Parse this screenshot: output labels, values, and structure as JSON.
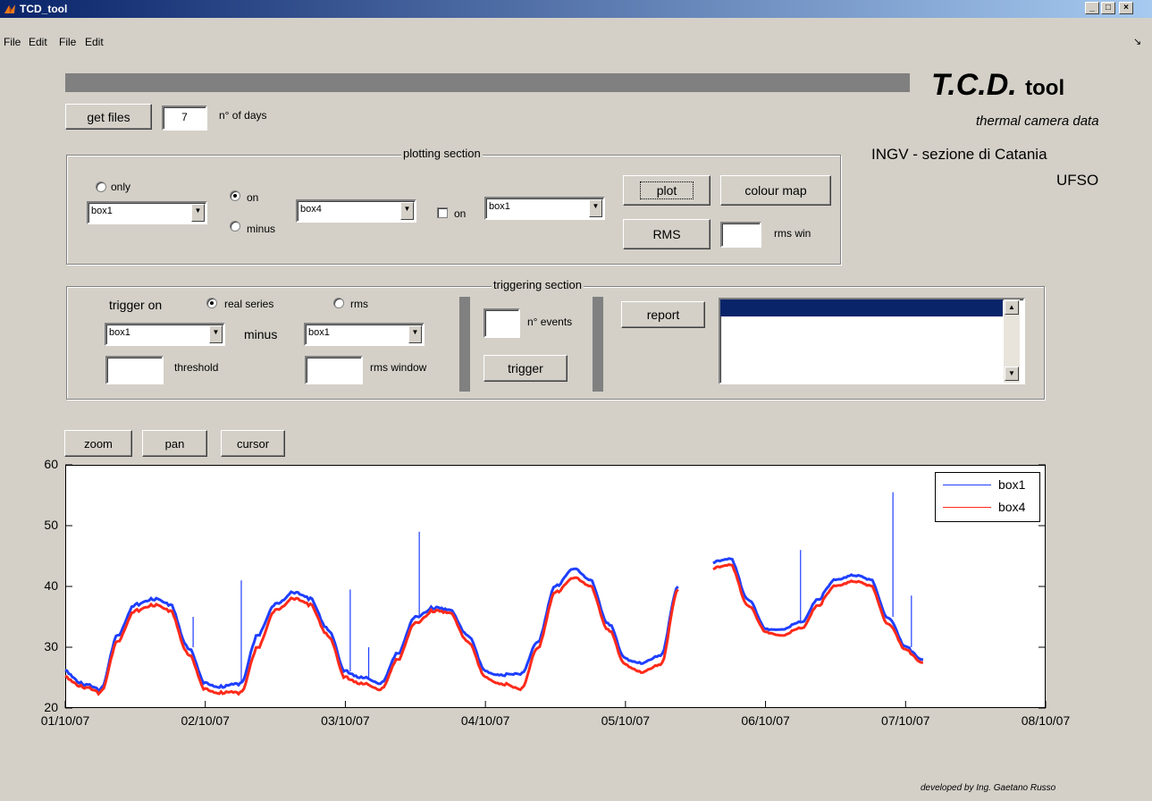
{
  "window": {
    "title": "TCD_tool",
    "controls": [
      "_",
      "□",
      "×"
    ]
  },
  "menubar": {
    "items": [
      "File",
      "Edit",
      "File",
      "Edit"
    ],
    "arrow": "↘"
  },
  "header": {
    "title": "T.C.D.",
    "title_suffix": "tool",
    "subtitle": "thermal camera data",
    "institute": "INGV - sezione di Catania",
    "unit": "UFSO"
  },
  "files": {
    "get_files_label": "get files",
    "days_value": "7",
    "days_label": "n° of days"
  },
  "plotting": {
    "section_title": "plotting section",
    "only_label": "only",
    "on_label": "on",
    "minus_label": "minus",
    "on2_label": "on",
    "select1": "box1",
    "select2": "box4",
    "select3": "box1",
    "plot_label": "plot",
    "colour_map_label": "colour map",
    "rms_label": "RMS",
    "rms_win_value": "",
    "rms_win_label": "rms win"
  },
  "triggering": {
    "section_title": "triggering section",
    "trigger_on_label": "trigger  on",
    "real_series_label": "real series",
    "rms_label": "rms",
    "select1": "box1",
    "minus_label": "minus",
    "select2": "box1",
    "threshold_value": "",
    "threshold_label": "threshold",
    "rms_window_value": "",
    "rms_window_label": "rms  window",
    "events_value": "",
    "events_label": "n° events",
    "trigger_label": "trigger",
    "report_label": "report"
  },
  "toolbar": {
    "zoom_label": "zoom",
    "pan_label": "pan",
    "cursor_label": "cursor"
  },
  "footer": {
    "credit": "developed  by  Ing.  Gaetano  Russo"
  },
  "colors": {
    "box1": "#1f3fff",
    "box4": "#ff2a1a",
    "titlebar": "#0a246a"
  },
  "chart_data": {
    "type": "line",
    "title": "",
    "xlabel": "",
    "ylabel": "",
    "ylim": [
      20,
      60
    ],
    "xlim": [
      "01/10/07",
      "08/10/07"
    ],
    "x_ticks": [
      "01/10/07",
      "02/10/07",
      "03/10/07",
      "04/10/07",
      "05/10/07",
      "06/10/07",
      "07/10/07",
      "08/10/07"
    ],
    "y_ticks": [
      "20",
      "30",
      "40",
      "50",
      "60"
    ],
    "legend": "top-right",
    "series": [
      {
        "name": "box1",
        "x": [
          "01/10/07 00:00",
          "01/10/07 03:00",
          "01/10/07 06:00",
          "01/10/07 09:00",
          "01/10/07 12:00",
          "01/10/07 15:00",
          "01/10/07 18:00",
          "01/10/07 21:00",
          "02/10/07 00:00",
          "02/10/07 03:00",
          "02/10/07 06:00",
          "02/10/07 09:00",
          "02/10/07 12:00",
          "02/10/07 15:00",
          "02/10/07 18:00",
          "02/10/07 21:00",
          "03/10/07 00:00",
          "03/10/07 03:00",
          "03/10/07 06:00",
          "03/10/07 09:00",
          "03/10/07 12:00",
          "03/10/07 15:00",
          "03/10/07 18:00",
          "03/10/07 21:00",
          "04/10/07 00:00",
          "04/10/07 03:00",
          "04/10/07 06:00",
          "04/10/07 09:00",
          "04/10/07 12:00",
          "04/10/07 15:00",
          "04/10/07 18:00",
          "04/10/07 21:00",
          "05/10/07 00:00",
          "05/10/07 03:00",
          "05/10/07 06:00",
          "05/10/07 09:00",
          "05/10/07 12:00",
          "05/10/07 15:00",
          "05/10/07 18:00",
          "05/10/07 21:00",
          "06/10/07 00:00",
          "06/10/07 03:00",
          "06/10/07 06:00",
          "06/10/07 09:00",
          "06/10/07 12:00",
          "06/10/07 15:00",
          "06/10/07 18:00",
          "06/10/07 21:00",
          "07/10/07 00:00",
          "07/10/07 03:00"
        ],
        "values": [
          26,
          24,
          23,
          32,
          37,
          38,
          37,
          30,
          24,
          23.5,
          24,
          32,
          37,
          39,
          38,
          33,
          26,
          25,
          24,
          29,
          35,
          36.5,
          36,
          32,
          26,
          25.5,
          25.5,
          31,
          40,
          43,
          41,
          34,
          28,
          27.5,
          28.5,
          40,
          null,
          44,
          44.5,
          38,
          33,
          33,
          34,
          38,
          41,
          42,
          41,
          35,
          30,
          28
        ]
      },
      {
        "name": "box4",
        "x": [
          "01/10/07 00:00",
          "01/10/07 03:00",
          "01/10/07 06:00",
          "01/10/07 09:00",
          "01/10/07 12:00",
          "01/10/07 15:00",
          "01/10/07 18:00",
          "01/10/07 21:00",
          "02/10/07 00:00",
          "02/10/07 03:00",
          "02/10/07 06:00",
          "02/10/07 09:00",
          "02/10/07 12:00",
          "02/10/07 15:00",
          "02/10/07 18:00",
          "02/10/07 21:00",
          "03/10/07 00:00",
          "03/10/07 03:00",
          "03/10/07 06:00",
          "03/10/07 09:00",
          "03/10/07 12:00",
          "03/10/07 15:00",
          "03/10/07 18:00",
          "03/10/07 21:00",
          "04/10/07 00:00",
          "04/10/07 03:00",
          "04/10/07 06:00",
          "04/10/07 09:00",
          "04/10/07 12:00",
          "04/10/07 15:00",
          "04/10/07 18:00",
          "04/10/07 21:00",
          "05/10/07 00:00",
          "05/10/07 03:00",
          "05/10/07 06:00",
          "05/10/07 09:00",
          "05/10/07 12:00",
          "05/10/07 15:00",
          "05/10/07 18:00",
          "05/10/07 21:00",
          "06/10/07 00:00",
          "06/10/07 03:00",
          "06/10/07 06:00",
          "06/10/07 09:00",
          "06/10/07 12:00",
          "06/10/07 15:00",
          "06/10/07 18:00",
          "06/10/07 21:00",
          "07/10/07 00:00",
          "07/10/07 03:00"
        ],
        "values": [
          25,
          23.5,
          22.5,
          31,
          36,
          37,
          36,
          29,
          23,
          22.5,
          22.5,
          30,
          36,
          38,
          37,
          32,
          25,
          24,
          23,
          28,
          34,
          36,
          35.5,
          31,
          25,
          24,
          23,
          30,
          39,
          41.5,
          40,
          33,
          27,
          26,
          27,
          39.5,
          null,
          43,
          43.5,
          37,
          32.5,
          32,
          33,
          37,
          40,
          41,
          40,
          34,
          29.5,
          27.5
        ]
      }
    ],
    "spikes": [
      {
        "series": "box1",
        "x": "01/10/07 21:55",
        "value": 35
      },
      {
        "series": "box1",
        "x": "02/10/07 06:10",
        "value": 41
      },
      {
        "series": "box1",
        "x": "02/10/07 20:00",
        "value": 33
      },
      {
        "series": "box1",
        "x": "03/10/07 00:50",
        "value": 39.5
      },
      {
        "series": "box1",
        "x": "03/10/07 04:00",
        "value": 30
      },
      {
        "series": "box1",
        "x": "03/10/07 12:40",
        "value": 49
      },
      {
        "series": "box1",
        "x": "06/10/07 06:00",
        "value": 46
      },
      {
        "series": "box1",
        "x": "06/10/07 21:50",
        "value": 55.5
      },
      {
        "series": "box1",
        "x": "07/10/07 01:00",
        "value": 38.5
      }
    ]
  }
}
